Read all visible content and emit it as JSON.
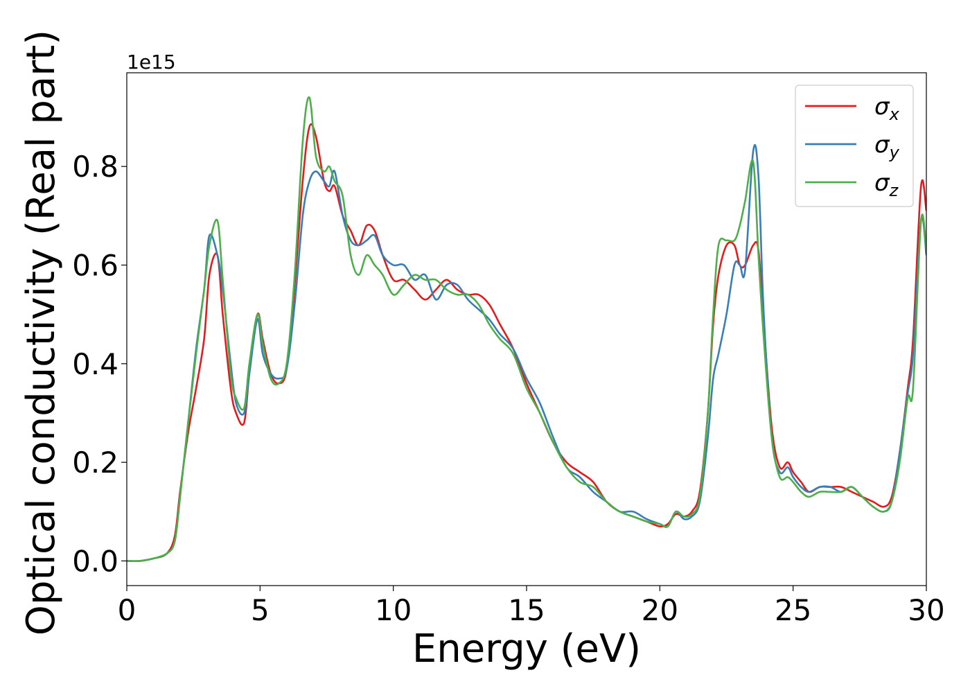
{
  "chart_data": {
    "type": "line",
    "xlabel": "Energy (eV)",
    "ylabel": "Optical conductivity (Real part)",
    "y_offset_label": "1e15",
    "xlim": [
      0,
      30
    ],
    "ylim": [
      -0.05,
      0.99
    ],
    "xticks": [
      0,
      5,
      10,
      15,
      20,
      25,
      30
    ],
    "xtick_labels": [
      "0",
      "5",
      "10",
      "15",
      "20",
      "25",
      "30"
    ],
    "yticks": [
      0.0,
      0.2,
      0.4,
      0.6,
      0.8
    ],
    "ytick_labels": [
      "0.0",
      "0.2",
      "0.4",
      "0.6",
      "0.8"
    ],
    "grid": false,
    "legend_position": "top-right",
    "series": [
      {
        "name": "σ_x",
        "legend_base": "σ",
        "legend_sub": "x",
        "color": "#e41a1c",
        "x": [
          0,
          0.5,
          1,
          1.5,
          1.8,
          2.0,
          2.3,
          2.6,
          2.9,
          3.1,
          3.4,
          3.6,
          3.9,
          4.1,
          4.4,
          4.6,
          4.9,
          5.1,
          5.4,
          5.7,
          6.0,
          6.3,
          6.6,
          6.85,
          7.1,
          7.4,
          7.6,
          7.8,
          8.1,
          8.4,
          8.7,
          9.0,
          9.3,
          9.6,
          10.0,
          10.4,
          10.8,
          11.2,
          11.6,
          12.0,
          12.4,
          12.8,
          13.2,
          13.6,
          14.0,
          14.5,
          15.0,
          15.5,
          16.0,
          16.5,
          17.0,
          17.5,
          18.0,
          18.5,
          19.0,
          19.5,
          20.0,
          20.3,
          20.6,
          20.9,
          21.2,
          21.5,
          21.8,
          22.0,
          22.2,
          22.5,
          22.8,
          23.0,
          23.2,
          23.5,
          23.7,
          23.9,
          24.2,
          24.5,
          24.8,
          25.0,
          25.3,
          25.6,
          26.0,
          26.4,
          26.8,
          27.2,
          27.6,
          28.0,
          28.4,
          28.7,
          29.0,
          29.3,
          29.5,
          29.8,
          30.0
        ],
        "values": [
          0.0,
          0.0,
          0.005,
          0.015,
          0.05,
          0.14,
          0.26,
          0.35,
          0.45,
          0.58,
          0.62,
          0.5,
          0.35,
          0.3,
          0.28,
          0.38,
          0.5,
          0.45,
          0.38,
          0.36,
          0.39,
          0.56,
          0.77,
          0.88,
          0.86,
          0.77,
          0.75,
          0.76,
          0.7,
          0.67,
          0.64,
          0.68,
          0.67,
          0.62,
          0.57,
          0.57,
          0.55,
          0.53,
          0.55,
          0.57,
          0.55,
          0.54,
          0.54,
          0.52,
          0.48,
          0.43,
          0.36,
          0.3,
          0.24,
          0.2,
          0.18,
          0.16,
          0.12,
          0.1,
          0.09,
          0.08,
          0.07,
          0.075,
          0.095,
          0.09,
          0.1,
          0.14,
          0.3,
          0.48,
          0.58,
          0.64,
          0.64,
          0.6,
          0.6,
          0.64,
          0.63,
          0.48,
          0.27,
          0.19,
          0.2,
          0.18,
          0.16,
          0.14,
          0.15,
          0.15,
          0.15,
          0.14,
          0.13,
          0.12,
          0.11,
          0.13,
          0.22,
          0.35,
          0.45,
          0.76,
          0.71
        ]
      },
      {
        "name": "σ_y",
        "legend_base": "σ",
        "legend_sub": "y",
        "color": "#377eb8",
        "x": [
          0,
          0.5,
          1,
          1.5,
          1.8,
          2.0,
          2.3,
          2.6,
          2.9,
          3.1,
          3.4,
          3.6,
          3.9,
          4.1,
          4.4,
          4.6,
          4.9,
          5.1,
          5.4,
          5.7,
          6.0,
          6.3,
          6.6,
          6.85,
          7.1,
          7.4,
          7.6,
          7.8,
          8.1,
          8.4,
          8.7,
          9.0,
          9.3,
          9.6,
          10.0,
          10.4,
          10.8,
          11.2,
          11.6,
          12.0,
          12.4,
          12.8,
          13.2,
          13.6,
          14.0,
          14.5,
          15.0,
          15.5,
          16.0,
          16.5,
          17.0,
          17.5,
          18.0,
          18.5,
          19.0,
          19.5,
          20.0,
          20.3,
          20.6,
          20.9,
          21.2,
          21.5,
          21.8,
          22.0,
          22.2,
          22.5,
          22.8,
          23.0,
          23.2,
          23.5,
          23.7,
          23.9,
          24.2,
          24.5,
          24.8,
          25.0,
          25.3,
          25.6,
          26.0,
          26.4,
          26.8,
          27.2,
          27.6,
          28.0,
          28.4,
          28.7,
          29.0,
          29.3,
          29.5,
          29.8,
          30.0
        ],
        "values": [
          0.0,
          0.0,
          0.005,
          0.015,
          0.04,
          0.13,
          0.28,
          0.43,
          0.55,
          0.66,
          0.62,
          0.55,
          0.4,
          0.32,
          0.3,
          0.38,
          0.49,
          0.42,
          0.38,
          0.37,
          0.39,
          0.52,
          0.7,
          0.77,
          0.79,
          0.77,
          0.76,
          0.79,
          0.7,
          0.65,
          0.64,
          0.65,
          0.66,
          0.62,
          0.6,
          0.6,
          0.57,
          0.58,
          0.53,
          0.56,
          0.56,
          0.53,
          0.51,
          0.49,
          0.46,
          0.43,
          0.37,
          0.32,
          0.25,
          0.19,
          0.17,
          0.14,
          0.12,
          0.1,
          0.1,
          0.085,
          0.075,
          0.07,
          0.1,
          0.085,
          0.09,
          0.12,
          0.25,
          0.37,
          0.42,
          0.5,
          0.6,
          0.6,
          0.59,
          0.83,
          0.78,
          0.5,
          0.25,
          0.18,
          0.19,
          0.17,
          0.15,
          0.14,
          0.15,
          0.15,
          0.14,
          0.15,
          0.13,
          0.11,
          0.1,
          0.12,
          0.22,
          0.34,
          0.42,
          0.69,
          0.62
        ]
      },
      {
        "name": "σ_z",
        "legend_base": "σ",
        "legend_sub": "z",
        "color": "#4daf4a",
        "x": [
          0,
          0.5,
          1,
          1.5,
          1.8,
          2.0,
          2.3,
          2.6,
          2.9,
          3.1,
          3.4,
          3.6,
          3.9,
          4.1,
          4.4,
          4.6,
          4.9,
          5.1,
          5.4,
          5.7,
          6.0,
          6.3,
          6.6,
          6.85,
          7.1,
          7.4,
          7.6,
          7.8,
          8.1,
          8.4,
          8.7,
          9.0,
          9.3,
          9.6,
          10.0,
          10.4,
          10.8,
          11.2,
          11.6,
          12.0,
          12.4,
          12.8,
          13.2,
          13.6,
          14.0,
          14.5,
          15.0,
          15.5,
          16.0,
          16.5,
          17.0,
          17.5,
          18.0,
          18.5,
          19.0,
          19.5,
          20.0,
          20.3,
          20.6,
          20.9,
          21.2,
          21.5,
          21.8,
          22.0,
          22.2,
          22.5,
          22.8,
          23.0,
          23.2,
          23.5,
          23.7,
          23.9,
          24.2,
          24.5,
          24.8,
          25.0,
          25.3,
          25.6,
          26.0,
          26.4,
          26.8,
          27.2,
          27.6,
          28.0,
          28.4,
          28.7,
          29.0,
          29.3,
          29.5,
          29.8,
          30.0
        ],
        "values": [
          0.0,
          0.0,
          0.005,
          0.015,
          0.04,
          0.13,
          0.28,
          0.42,
          0.55,
          0.64,
          0.69,
          0.57,
          0.38,
          0.33,
          0.31,
          0.4,
          0.5,
          0.44,
          0.37,
          0.36,
          0.4,
          0.58,
          0.85,
          0.94,
          0.82,
          0.79,
          0.8,
          0.77,
          0.74,
          0.62,
          0.58,
          0.62,
          0.6,
          0.58,
          0.54,
          0.56,
          0.58,
          0.57,
          0.57,
          0.55,
          0.54,
          0.54,
          0.52,
          0.48,
          0.45,
          0.42,
          0.35,
          0.3,
          0.24,
          0.19,
          0.16,
          0.15,
          0.12,
          0.1,
          0.09,
          0.08,
          0.075,
          0.07,
          0.1,
          0.09,
          0.095,
          0.13,
          0.3,
          0.5,
          0.64,
          0.65,
          0.65,
          0.68,
          0.73,
          0.81,
          0.62,
          0.45,
          0.25,
          0.17,
          0.17,
          0.16,
          0.14,
          0.13,
          0.14,
          0.14,
          0.14,
          0.15,
          0.13,
          0.11,
          0.1,
          0.12,
          0.2,
          0.33,
          0.35,
          0.69,
          0.63
        ]
      }
    ]
  }
}
